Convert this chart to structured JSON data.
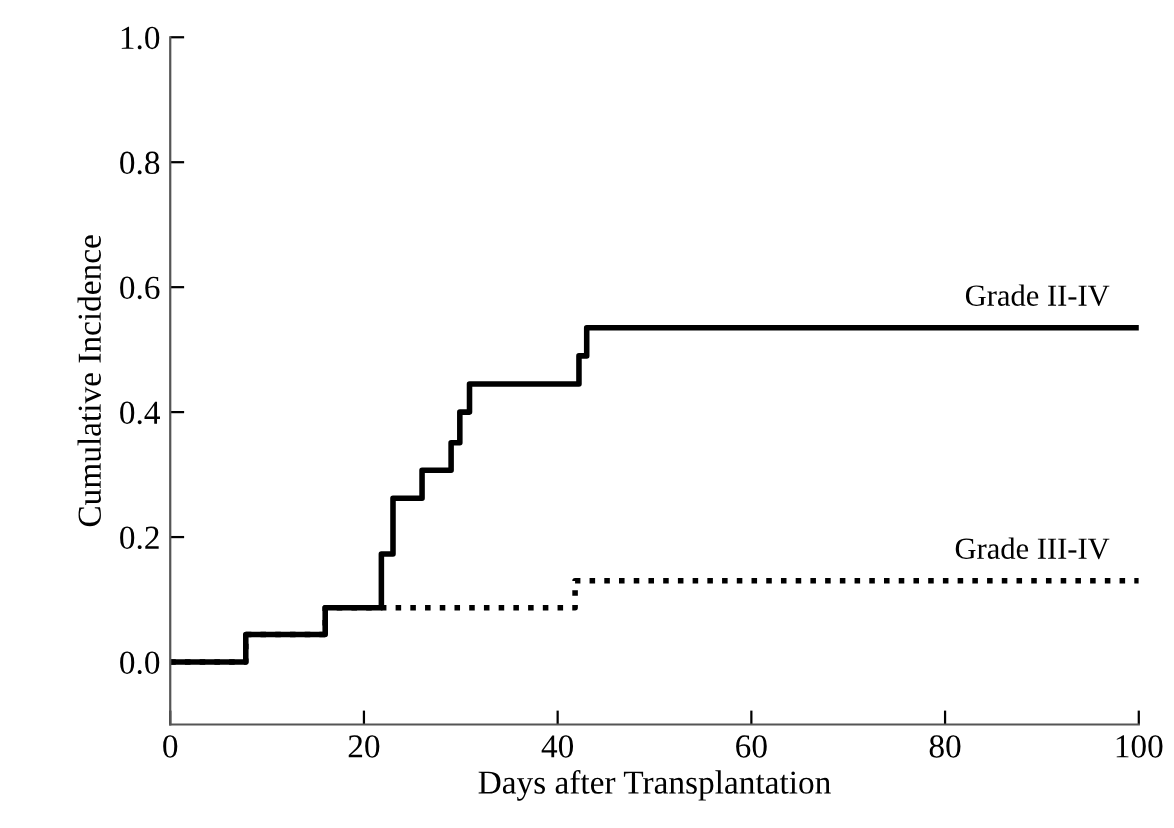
{
  "chart_data": {
    "type": "step",
    "xlabel": "Days after Transplantation",
    "ylabel": "Cumulative Incidence",
    "xlim": [
      0,
      100
    ],
    "xticks": [
      0,
      20,
      40,
      60,
      80,
      100
    ],
    "ylim": [
      -0.1,
      1.0
    ],
    "yticks": [
      {
        "value": 0,
        "label": "0.0"
      },
      {
        "value": 0.2,
        "label": "0.2"
      },
      {
        "value": 0.4,
        "label": "0.4"
      },
      {
        "value": 0.6,
        "label": "0.6"
      },
      {
        "value": 0.8,
        "label": "0.8"
      },
      {
        "value": 1.0,
        "label": "1.0"
      }
    ],
    "grid": false,
    "legend": false,
    "series": [
      {
        "name": "Grade II-IV",
        "color": "#000000",
        "line_style": "solid",
        "x": [
          0,
          7.8,
          16.0,
          21.8,
          23.0,
          26.0,
          29.0,
          29.9,
          30.9,
          42.2,
          43.0,
          100
        ],
        "values": [
          0,
          0.044,
          0.087,
          0.173,
          0.262,
          0.307,
          0.351,
          0.4,
          0.445,
          0.49,
          0.535,
          0.535
        ]
      },
      {
        "name": "Grade III-IV",
        "color": "#000000",
        "line_style": "dotted",
        "x": [
          0,
          7.8,
          16.0,
          41.8,
          100
        ],
        "values": [
          0,
          0.044,
          0.087,
          0.13,
          0.13
        ]
      }
    ]
  }
}
